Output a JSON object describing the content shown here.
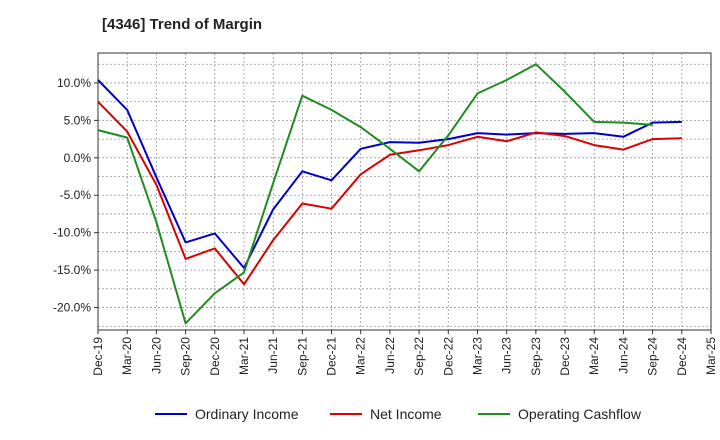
{
  "chart_data": {
    "type": "line",
    "title": "[4346]  Trend of Margin",
    "xlabel": "",
    "ylabel": "",
    "categories": [
      "Dec-19",
      "Mar-20",
      "Jun-20",
      "Sep-20",
      "Dec-20",
      "Mar-21",
      "Jun-21",
      "Sep-21",
      "Dec-21",
      "Mar-22",
      "Jun-22",
      "Sep-22",
      "Dec-22",
      "Mar-23",
      "Jun-23",
      "Sep-23",
      "Dec-23",
      "Mar-24",
      "Jun-24",
      "Sep-24",
      "Dec-24",
      "Mar-25"
    ],
    "ylim": [
      -23,
      14
    ],
    "yticks": [
      10,
      5,
      0,
      -5,
      -10,
      -15,
      -20
    ],
    "ytick_labels": [
      "10.0%",
      "5.0%",
      "0.0%",
      "-5.0%",
      "-10.0%",
      "-15.0%",
      "-20.0%"
    ],
    "grid": true,
    "legend_position": "bottom",
    "series": [
      {
        "name": "Ordinary Income",
        "color": "#0000cc",
        "values": [
          10.4,
          6.4,
          -2.6,
          -11.3,
          -10.1,
          -14.7,
          -6.9,
          -1.8,
          -3.0,
          1.2,
          2.1,
          2.0,
          2.5,
          3.3,
          3.1,
          3.3,
          3.2,
          3.3,
          2.8,
          4.7,
          4.8,
          null
        ]
      },
      {
        "name": "Net Income",
        "color": "#dd0000",
        "values": [
          7.5,
          3.5,
          -3.6,
          -13.5,
          -12.1,
          -16.9,
          -11.0,
          -6.1,
          -6.8,
          -2.2,
          0.4,
          1.0,
          1.7,
          2.8,
          2.2,
          3.4,
          2.9,
          1.7,
          1.1,
          2.5,
          2.6,
          null
        ]
      },
      {
        "name": "Operating Cashflow",
        "color": "#228b22",
        "values": [
          3.7,
          2.7,
          -8.6,
          -22.1,
          -18.1,
          -15.3,
          -3.4,
          8.3,
          6.4,
          4.1,
          1.2,
          -1.8,
          3.0,
          8.6,
          10.4,
          12.5,
          8.8,
          4.8,
          4.7,
          4.4,
          null,
          null
        ]
      }
    ]
  }
}
